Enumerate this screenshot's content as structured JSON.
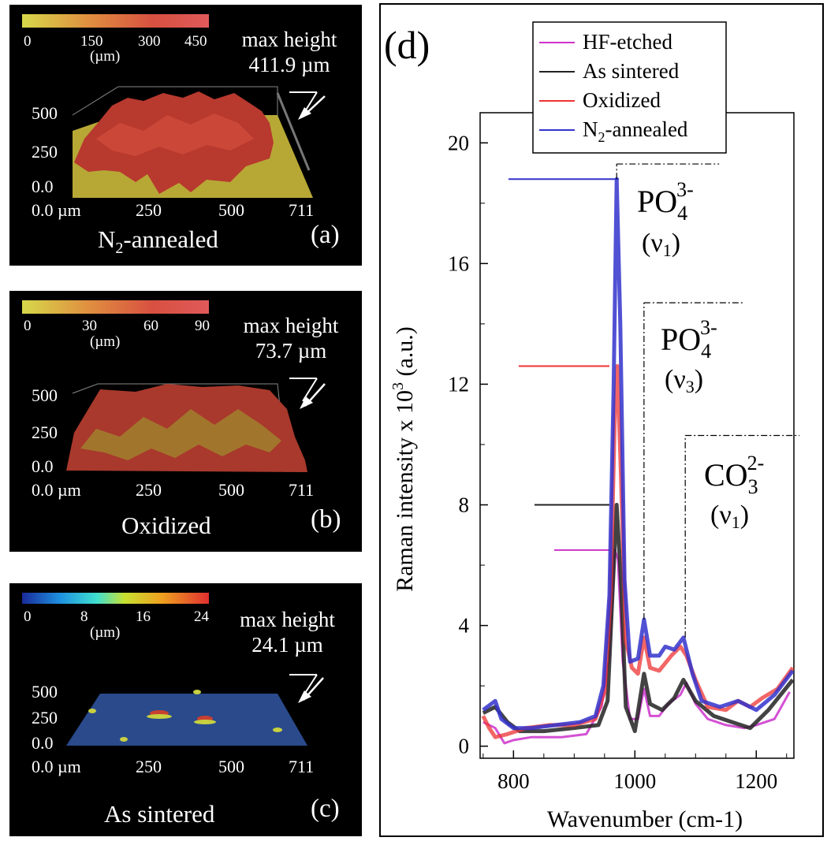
{
  "panels": [
    {
      "id": "a",
      "label": "(a)",
      "sample": "N2-annealed",
      "max_height_label": "max height",
      "max_height_value": "411.9 µm",
      "colorbar": {
        "ticks": [
          "0",
          "150",
          "300",
          "450"
        ],
        "unit": "(µm)",
        "colors": [
          "#d6d84a",
          "#e08a3a",
          "#d85040",
          "#e05a5a"
        ]
      },
      "z_ticks": [
        "500",
        "250",
        "0.0"
      ],
      "x_ticks": [
        "0.0 µm",
        "250",
        "500",
        "711"
      ],
      "surface_fill": "#b7a836",
      "relief_color": "#b8392e"
    },
    {
      "id": "b",
      "label": "(b)",
      "sample": "Oxidized",
      "max_height_label": "max height",
      "max_height_value": "73.7 µm",
      "colorbar": {
        "ticks": [
          "0",
          "30",
          "60",
          "90"
        ],
        "unit": "(µm)",
        "colors": [
          "#d6d84a",
          "#e08a3a",
          "#d85040",
          "#e05a5a"
        ]
      },
      "z_ticks": [
        "500",
        "250",
        "0.0"
      ],
      "x_ticks": [
        "0.0 µm",
        "250",
        "500",
        "711"
      ],
      "surface_fill": "#a0892e",
      "relief_color": "#a8392c"
    },
    {
      "id": "c",
      "label": "(c)",
      "sample": "As sintered",
      "max_height_label": "max height",
      "max_height_value": "24.1 µm",
      "colorbar": {
        "ticks": [
          "0",
          "8",
          "16",
          "24"
        ],
        "unit": "(µm)",
        "colors": [
          "#1a2a9a",
          "#1e90e0",
          "#40e0d0",
          "#c8e030",
          "#f0a020",
          "#e03030"
        ]
      },
      "z_ticks": [
        "500",
        "250",
        "0.0"
      ],
      "x_ticks": [
        "0.0 µm",
        "250",
        "500",
        "711"
      ],
      "surface_fill": "#2a4a8c",
      "relief_color": "#c84030"
    }
  ],
  "panel_d": {
    "label": "(d)",
    "annotations": [
      {
        "species": "PO",
        "sub": "4",
        "sup": "3-",
        "mode": "(ν",
        "mode_sub": "1",
        "mode_close": ")"
      },
      {
        "species": "PO",
        "sub": "4",
        "sup": "3-",
        "mode": "(ν",
        "mode_sub": "3",
        "mode_close": ")"
      },
      {
        "species": "CO",
        "sub": "3",
        "sup": "2-",
        "mode": "(ν",
        "mode_sub": "1",
        "mode_close": ")"
      }
    ]
  },
  "chart_data": {
    "type": "line",
    "xlabel": "Wavenumber",
    "xlabel_unit": "(cm-1)",
    "ylabel": "Raman intensity x 10",
    "ylabel_sup": "3",
    "ylabel_unit": "(a.u.)",
    "xlim": [
      745,
      1262
    ],
    "ylim": [
      -0.4,
      21
    ],
    "x_ticks": [
      800,
      1000,
      1200
    ],
    "y_ticks": [
      0,
      4,
      8,
      12,
      16,
      20
    ],
    "legend_position": "top",
    "series": [
      {
        "name": "HF-etched",
        "name_sub": "",
        "name_rest": "",
        "color": "#cc33cc",
        "peak_level": 6.5,
        "points": [
          [
            750,
            0.8
          ],
          [
            770,
            0.6
          ],
          [
            785,
            0.1
          ],
          [
            800,
            0.2
          ],
          [
            830,
            0.3
          ],
          [
            880,
            0.3
          ],
          [
            920,
            0.4
          ],
          [
            945,
            1.3
          ],
          [
            958,
            3.0
          ],
          [
            967,
            6.5
          ],
          [
            972,
            6.2
          ],
          [
            980,
            2.8
          ],
          [
            992,
            0.9
          ],
          [
            1005,
            0.9
          ],
          [
            1015,
            1.9
          ],
          [
            1025,
            1.0
          ],
          [
            1040,
            1.0
          ],
          [
            1055,
            1.4
          ],
          [
            1075,
            1.7
          ],
          [
            1085,
            2.1
          ],
          [
            1100,
            1.4
          ],
          [
            1120,
            0.9
          ],
          [
            1150,
            0.7
          ],
          [
            1180,
            0.6
          ],
          [
            1200,
            0.7
          ],
          [
            1230,
            0.9
          ],
          [
            1255,
            1.8
          ]
        ]
      },
      {
        "name": "As sintered",
        "name_sub": "",
        "name_rest": "",
        "color": "#222222",
        "peak_level": 8.0,
        "points": [
          [
            750,
            1.1
          ],
          [
            770,
            1.3
          ],
          [
            790,
            0.8
          ],
          [
            810,
            0.5
          ],
          [
            850,
            0.5
          ],
          [
            900,
            0.6
          ],
          [
            940,
            0.7
          ],
          [
            955,
            1.5
          ],
          [
            963,
            5.0
          ],
          [
            970,
            8.0
          ],
          [
            977,
            5.5
          ],
          [
            985,
            1.3
          ],
          [
            1000,
            0.5
          ],
          [
            1015,
            2.4
          ],
          [
            1025,
            1.4
          ],
          [
            1045,
            1.2
          ],
          [
            1065,
            1.6
          ],
          [
            1080,
            2.2
          ],
          [
            1100,
            1.5
          ],
          [
            1130,
            1.0
          ],
          [
            1160,
            0.8
          ],
          [
            1190,
            0.6
          ],
          [
            1220,
            1.2
          ],
          [
            1260,
            2.2
          ]
        ]
      },
      {
        "name": "Oxidized",
        "name_sub": "",
        "name_rest": "",
        "color": "#ee3333",
        "peak_level": 12.6,
        "points": [
          [
            750,
            1.0
          ],
          [
            760,
            0.6
          ],
          [
            770,
            0.3
          ],
          [
            790,
            0.4
          ],
          [
            820,
            0.6
          ],
          [
            860,
            0.7
          ],
          [
            900,
            0.7
          ],
          [
            935,
            0.9
          ],
          [
            950,
            1.8
          ],
          [
            960,
            5.0
          ],
          [
            967,
            11.0
          ],
          [
            971,
            12.6
          ],
          [
            977,
            9.0
          ],
          [
            985,
            3.5
          ],
          [
            995,
            2.6
          ],
          [
            1005,
            2.4
          ],
          [
            1015,
            3.6
          ],
          [
            1025,
            2.6
          ],
          [
            1040,
            2.5
          ],
          [
            1060,
            3.0
          ],
          [
            1075,
            3.3
          ],
          [
            1085,
            3.0
          ],
          [
            1100,
            2.2
          ],
          [
            1120,
            1.3
          ],
          [
            1150,
            1.2
          ],
          [
            1170,
            1.5
          ],
          [
            1190,
            1.3
          ],
          [
            1210,
            1.6
          ],
          [
            1235,
            1.9
          ],
          [
            1260,
            2.6
          ]
        ]
      },
      {
        "name": "N",
        "name_sub": "2",
        "name_rest": "-annealed",
        "color": "#3333cc",
        "peak_level": 18.8,
        "points": [
          [
            750,
            1.2
          ],
          [
            770,
            1.5
          ],
          [
            780,
            0.9
          ],
          [
            800,
            0.6
          ],
          [
            830,
            0.6
          ],
          [
            870,
            0.7
          ],
          [
            910,
            0.8
          ],
          [
            935,
            1.0
          ],
          [
            948,
            2.0
          ],
          [
            958,
            5.0
          ],
          [
            965,
            12.0
          ],
          [
            970,
            18.8
          ],
          [
            976,
            14.0
          ],
          [
            983,
            5.5
          ],
          [
            992,
            2.8
          ],
          [
            1005,
            2.9
          ],
          [
            1015,
            4.2
          ],
          [
            1025,
            3.0
          ],
          [
            1040,
            3.0
          ],
          [
            1050,
            3.3
          ],
          [
            1065,
            3.2
          ],
          [
            1080,
            3.6
          ],
          [
            1095,
            2.4
          ],
          [
            1110,
            1.5
          ],
          [
            1140,
            1.3
          ],
          [
            1170,
            1.5
          ],
          [
            1200,
            1.2
          ],
          [
            1230,
            1.7
          ],
          [
            1260,
            2.5
          ]
        ]
      }
    ]
  }
}
